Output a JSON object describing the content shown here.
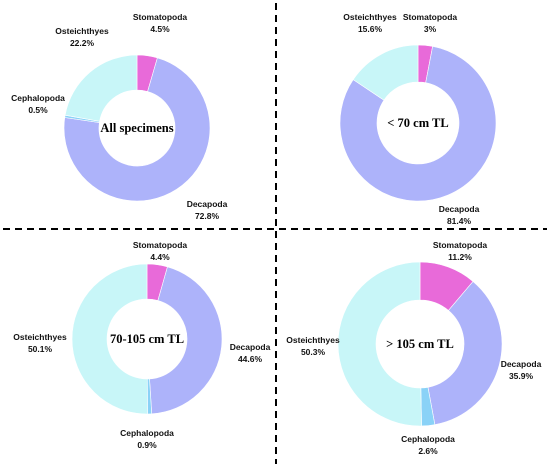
{
  "palette": {
    "Stomatopoda": "#e86ad9",
    "Decapoda": "#adb3fa",
    "Cephalopoda": "#8ad2f7",
    "Osteichthyes": "#c8f6f8"
  },
  "chart_data": [
    {
      "type": "pie",
      "center_label": "All specimens",
      "slices": [
        {
          "name": "Stomatopoda",
          "value": 4.5,
          "label": "4.5%"
        },
        {
          "name": "Decapoda",
          "value": 72.8,
          "label": "72.8%"
        },
        {
          "name": "Cephalopoda",
          "value": 0.5,
          "label": "0.5%"
        },
        {
          "name": "Osteichthyes",
          "value": 22.2,
          "label": "22.2%"
        }
      ]
    },
    {
      "type": "pie",
      "center_label": "< 70 cm TL",
      "slices": [
        {
          "name": "Stomatopoda",
          "value": 3,
          "label": "3%"
        },
        {
          "name": "Decapoda",
          "value": 81.4,
          "label": "81.4%"
        },
        {
          "name": "Osteichthyes",
          "value": 15.6,
          "label": "15.6%"
        }
      ]
    },
    {
      "type": "pie",
      "center_label": "70-105 cm TL",
      "slices": [
        {
          "name": "Stomatopoda",
          "value": 4.4,
          "label": "4.4%"
        },
        {
          "name": "Decapoda",
          "value": 44.6,
          "label": "44.6%"
        },
        {
          "name": "Cephalopoda",
          "value": 0.9,
          "label": "0.9%"
        },
        {
          "name": "Osteichthyes",
          "value": 50.1,
          "label": "50.1%"
        }
      ]
    },
    {
      "type": "pie",
      "center_label": "> 105 cm TL",
      "slices": [
        {
          "name": "Stomatopoda",
          "value": 11.2,
          "label": "11.2%"
        },
        {
          "name": "Decapoda",
          "value": 35.9,
          "label": "35.9%"
        },
        {
          "name": "Cephalopoda",
          "value": 2.6,
          "label": "2.6%"
        },
        {
          "name": "Osteichthyes",
          "value": 50.3,
          "label": "50.3%"
        }
      ]
    }
  ]
}
